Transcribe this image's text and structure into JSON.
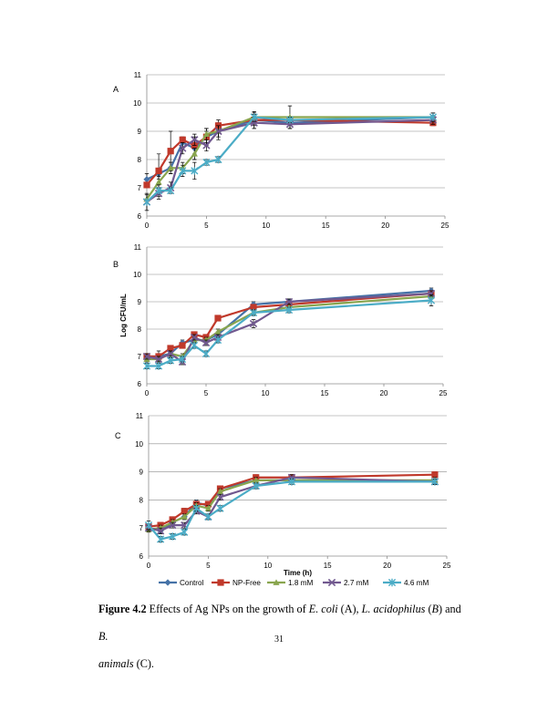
{
  "chart_data": [
    {
      "type": "line",
      "panel_label": "A",
      "xlim": [
        0,
        25
      ],
      "ylim": [
        6,
        11
      ],
      "x_ticks": [
        "0",
        "5",
        "10",
        "15",
        "20",
        "25"
      ],
      "y_ticks": [
        "6",
        "7",
        "8",
        "9",
        "10",
        "11"
      ],
      "grid": "horizontal",
      "x": [
        0,
        1,
        2,
        3,
        4,
        5,
        6,
        9,
        12,
        24
      ],
      "series": [
        {
          "name": "Control",
          "values": [
            7.3,
            7.5,
            7.7,
            8.6,
            8.4,
            8.8,
            9.0,
            9.4,
            9.3,
            9.5
          ],
          "err": [
            0.2,
            0.2,
            0.2,
            0.2,
            0.4,
            0.3,
            0.3,
            0.3,
            0.2,
            0.15
          ]
        },
        {
          "name": "NP-Free",
          "values": [
            7.1,
            7.6,
            8.3,
            8.7,
            8.5,
            8.8,
            9.2,
            9.4,
            9.4,
            9.3
          ],
          "err": [
            0.1,
            0.6,
            0.7,
            0.1,
            0.3,
            0.2,
            0.2,
            0.2,
            0.1,
            0.1
          ]
        },
        {
          "name": "1.8 mM",
          "values": [
            6.6,
            7.2,
            7.7,
            7.7,
            8.2,
            8.9,
            9.0,
            9.5,
            9.5,
            9.5
          ],
          "err": [
            0.15,
            0.2,
            0.2,
            0.2,
            0.2,
            0.2,
            0.2,
            0.2,
            0.4,
            0.15
          ]
        },
        {
          "name": "2.7 mM",
          "values": [
            6.5,
            6.8,
            7.0,
            8.4,
            8.7,
            8.5,
            9.0,
            9.3,
            9.25,
            9.4
          ],
          "err": [
            0.3,
            0.2,
            0.2,
            0.2,
            0.2,
            0.2,
            0.2,
            0.2,
            0.15,
            0.15
          ]
        },
        {
          "name": "4.6 mM",
          "values": [
            6.5,
            6.9,
            6.9,
            7.6,
            7.6,
            7.9,
            8.0,
            9.5,
            9.4,
            9.5
          ],
          "err": [
            0.3,
            0.2,
            0.1,
            0.2,
            0.3,
            0.1,
            0.1,
            0.15,
            0.1,
            0.15
          ]
        }
      ]
    },
    {
      "type": "line",
      "panel_label": "B",
      "ylabel": "Log CFU/mL",
      "xlim": [
        0,
        25
      ],
      "ylim": [
        6,
        11
      ],
      "x_ticks": [
        "0",
        "5",
        "10",
        "15",
        "20",
        "25"
      ],
      "y_ticks": [
        "6",
        "7",
        "8",
        "9",
        "10",
        "11"
      ],
      "grid": "horizontal",
      "x": [
        0,
        1,
        2,
        3,
        4,
        5,
        6,
        9,
        12,
        24
      ],
      "series": [
        {
          "name": "Control",
          "values": [
            7.0,
            7.0,
            7.1,
            7.5,
            7.6,
            7.6,
            7.8,
            8.9,
            9.0,
            9.4
          ],
          "err": [
            0.1,
            0.2,
            0.15,
            0.1,
            0.1,
            0.1,
            0.1,
            0.1,
            0.1,
            0.1
          ]
        },
        {
          "name": "NP-Free",
          "values": [
            7.0,
            7.0,
            7.3,
            7.4,
            7.8,
            7.7,
            8.4,
            8.8,
            8.9,
            9.3
          ],
          "err": [
            0.1,
            0.1,
            0.1,
            0.1,
            0.1,
            0.1,
            0.1,
            0.1,
            0.1,
            0.1
          ]
        },
        {
          "name": "1.8 mM",
          "values": [
            6.9,
            6.9,
            7.1,
            7.0,
            7.6,
            7.6,
            7.9,
            8.6,
            8.8,
            9.2
          ],
          "err": [
            0.1,
            0.1,
            0.1,
            0.1,
            0.1,
            0.1,
            0.1,
            0.1,
            0.1,
            0.1
          ]
        },
        {
          "name": "2.7 mM",
          "values": [
            7.0,
            6.9,
            7.1,
            6.8,
            7.7,
            7.5,
            7.7,
            8.2,
            9.0,
            9.3
          ],
          "err": [
            0.1,
            0.1,
            0.1,
            0.1,
            0.1,
            0.1,
            0.1,
            0.15,
            0.1,
            0.1
          ]
        },
        {
          "name": "4.6 mM",
          "values": [
            6.65,
            6.65,
            6.85,
            6.9,
            7.4,
            7.1,
            7.6,
            8.6,
            8.7,
            9.05
          ],
          "err": [
            0.1,
            0.1,
            0.1,
            0.1,
            0.1,
            0.1,
            0.1,
            0.1,
            0.1,
            0.2
          ]
        }
      ]
    },
    {
      "type": "line",
      "panel_label": "C",
      "xlabel": "Time (h)",
      "xlim": [
        0,
        25
      ],
      "ylim": [
        6,
        11
      ],
      "x_ticks": [
        "0",
        "5",
        "10",
        "15",
        "20",
        "25"
      ],
      "y_ticks": [
        "6",
        "7",
        "8",
        "9",
        "10",
        "11"
      ],
      "grid": "horizontal",
      "x": [
        0,
        1,
        2,
        3,
        4,
        5,
        6,
        9,
        12,
        24
      ],
      "series": [
        {
          "name": "Control",
          "values": [
            7.0,
            6.9,
            7.2,
            7.4,
            7.9,
            7.8,
            8.4,
            8.7,
            8.7,
            8.65
          ],
          "err": [
            0.1,
            0.1,
            0.1,
            0.1,
            0.1,
            0.1,
            0.1,
            0.1,
            0.1,
            0.1
          ]
        },
        {
          "name": "NP-Free",
          "values": [
            7.05,
            7.1,
            7.3,
            7.6,
            7.85,
            7.85,
            8.4,
            8.8,
            8.8,
            8.9
          ],
          "err": [
            0.1,
            0.1,
            0.1,
            0.1,
            0.1,
            0.1,
            0.1,
            0.1,
            0.1,
            0.1
          ]
        },
        {
          "name": "1.8 mM",
          "values": [
            6.95,
            7.0,
            7.2,
            7.4,
            7.8,
            7.7,
            8.3,
            8.7,
            8.7,
            8.7
          ],
          "err": [
            0.1,
            0.1,
            0.1,
            0.1,
            0.1,
            0.1,
            0.1,
            0.1,
            0.1,
            0.1
          ]
        },
        {
          "name": "2.7 mM",
          "values": [
            7.0,
            6.9,
            7.1,
            7.1,
            7.6,
            7.4,
            8.1,
            8.5,
            8.8,
            8.65
          ],
          "err": [
            0.1,
            0.1,
            0.1,
            0.1,
            0.1,
            0.1,
            0.1,
            0.1,
            0.1,
            0.1
          ]
        },
        {
          "name": "4.6 mM",
          "values": [
            7.1,
            6.6,
            6.7,
            6.85,
            7.7,
            7.4,
            7.7,
            8.5,
            8.65,
            8.65
          ],
          "err": [
            0.15,
            0.1,
            0.1,
            0.1,
            0.1,
            0.1,
            0.1,
            0.1,
            0.1,
            0.1
          ]
        }
      ]
    }
  ],
  "legend": [
    {
      "name": "Control",
      "color": "#4572A7",
      "marker": "diamond"
    },
    {
      "name": "NP-Free",
      "color": "#C0392B",
      "marker": "square"
    },
    {
      "name": "1.8 mM",
      "color": "#89A54E",
      "marker": "triangle"
    },
    {
      "name": "2.7 mM",
      "color": "#71588F",
      "marker": "x"
    },
    {
      "name": "4.6 mM",
      "color": "#4BACC6",
      "marker": "star"
    }
  ],
  "caption": {
    "label": "Figure 4.2",
    "text_1": " Effects of Ag NPs on the growth of ",
    "organism_1": "E. coli",
    "text_2": " (A), ",
    "organism_2": "L. acidophilus",
    "text_3": " (",
    "panel_b": "B",
    "text_4": ") and ",
    "organism_3": "B.",
    "organism_3b": "animals",
    "text_5": " (C)."
  },
  "page_number": "31"
}
